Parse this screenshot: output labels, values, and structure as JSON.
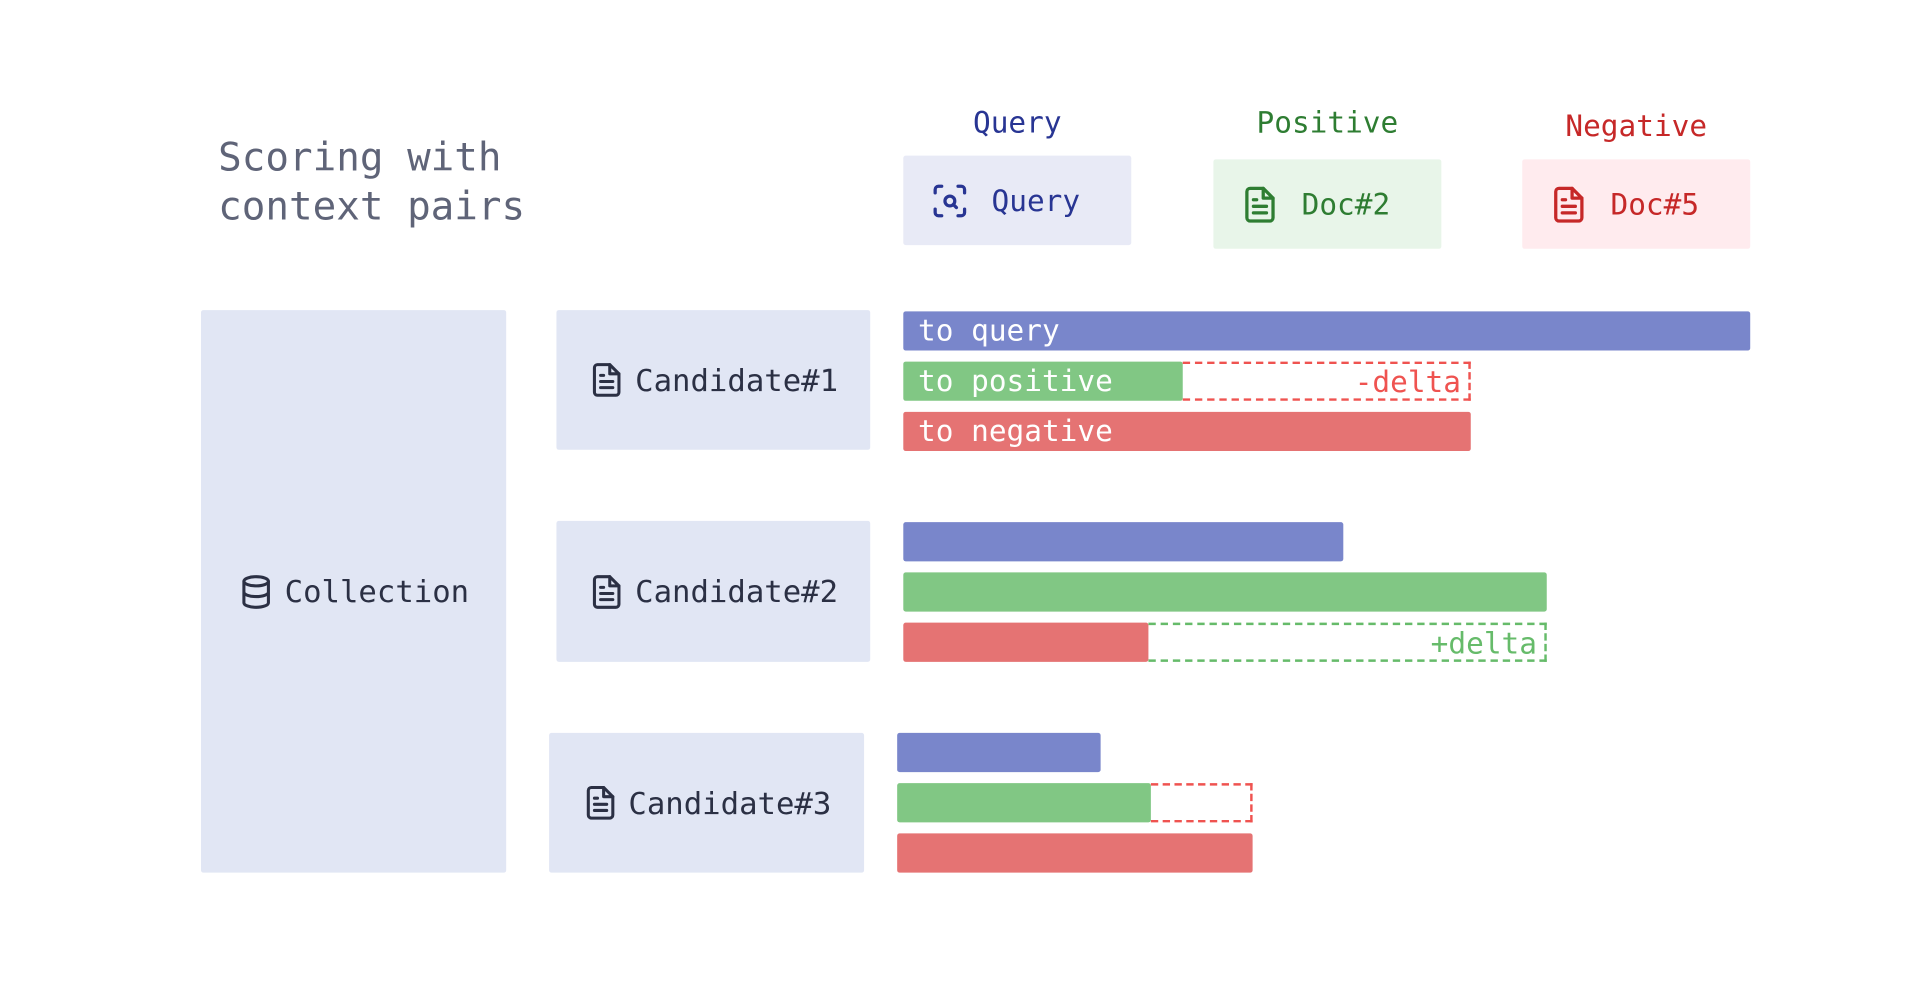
{
  "title": "Scoring with\ncontext pairs",
  "colors": {
    "query": "#7986cb",
    "positive": "#81c784",
    "negative": "#e57373",
    "query_text": "#283593",
    "positive_text": "#2e7d32",
    "negative_text": "#c62828",
    "delta_negative": "#ef5350",
    "delta_positive": "#66bb6a"
  },
  "references": {
    "query": {
      "header": "Query",
      "label": "Query",
      "icon": "scan-search-icon"
    },
    "positive": {
      "header": "Positive",
      "label": "Doc#2",
      "icon": "file-text-icon"
    },
    "negative": {
      "header": "Negative",
      "label": "Doc#5",
      "icon": "file-text-icon"
    }
  },
  "collection": {
    "label": "Collection",
    "icon": "database-icon"
  },
  "bar_labels": {
    "query": "to query",
    "positive": "to positive",
    "negative": "to negative"
  },
  "deltas": {
    "minus": "-delta",
    "plus": "+delta"
  },
  "candidates": [
    {
      "label": "Candidate#1",
      "icon": "file-text-icon",
      "scores": {
        "query": 1.0,
        "positive": 0.33,
        "negative": 0.67
      }
    },
    {
      "label": "Candidate#2",
      "icon": "file-text-icon",
      "scores": {
        "query": 0.52,
        "positive": 0.76,
        "negative": 0.29
      }
    },
    {
      "label": "Candidate#3",
      "icon": "file-text-icon",
      "scores": {
        "query": 0.24,
        "positive": 0.3,
        "negative": 0.42
      }
    }
  ]
}
